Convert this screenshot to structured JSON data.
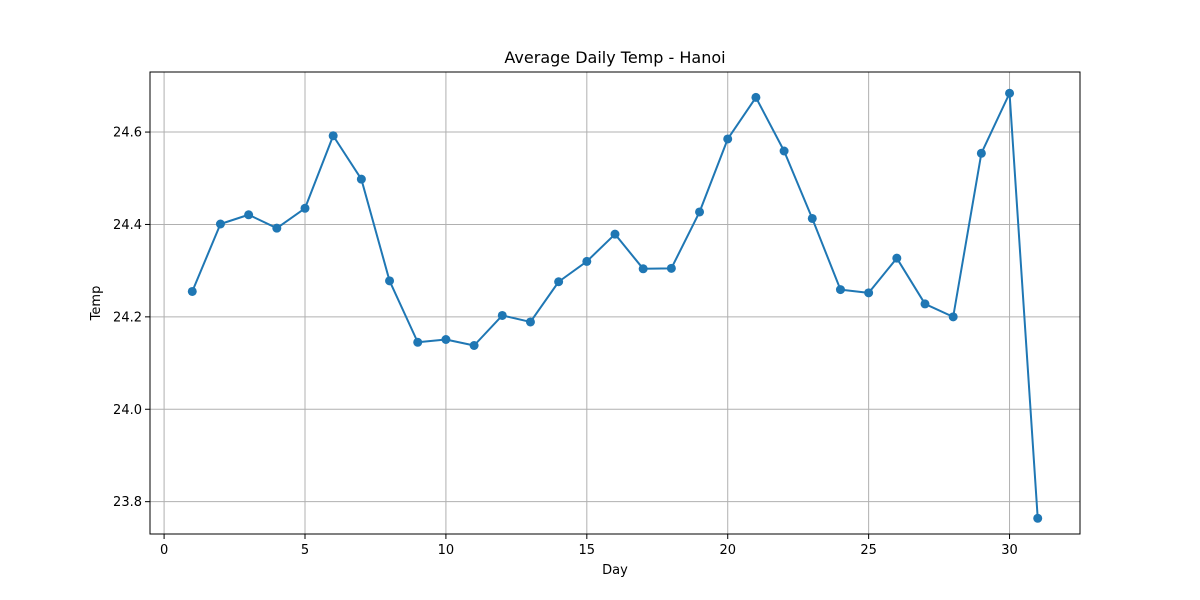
{
  "chart_data": {
    "type": "line",
    "title": "Average Daily Temp - Hanoi",
    "xlabel": "Day",
    "ylabel": "Temp",
    "xlim": [
      -0.5,
      32.5
    ],
    "ylim": [
      23.73,
      24.73
    ],
    "x_ticks": [
      0,
      5,
      10,
      15,
      20,
      25,
      30
    ],
    "y_ticks": [
      23.8,
      24.0,
      24.2,
      24.4,
      24.6
    ],
    "y_tick_labels": [
      "23.8",
      "24.0",
      "24.2",
      "24.4",
      "24.6"
    ],
    "grid": true,
    "marker": "circle",
    "color": "#1f77b4",
    "series": [
      {
        "x": [
          1,
          2,
          3,
          4,
          5,
          6,
          7,
          8,
          9,
          10,
          11,
          12,
          13,
          14,
          15,
          16,
          17,
          18,
          19,
          20,
          21,
          22,
          23,
          24,
          25,
          26,
          27,
          28,
          29,
          30,
          31
        ],
        "values": [
          24.255,
          24.401,
          24.421,
          24.392,
          24.435,
          24.592,
          24.498,
          24.278,
          24.145,
          24.151,
          24.138,
          24.203,
          24.189,
          24.276,
          24.32,
          24.379,
          24.304,
          24.305,
          24.427,
          24.585,
          24.675,
          24.559,
          24.413,
          24.259,
          24.252,
          24.327,
          24.228,
          24.2,
          24.554,
          24.684,
          23.764
        ]
      }
    ]
  }
}
